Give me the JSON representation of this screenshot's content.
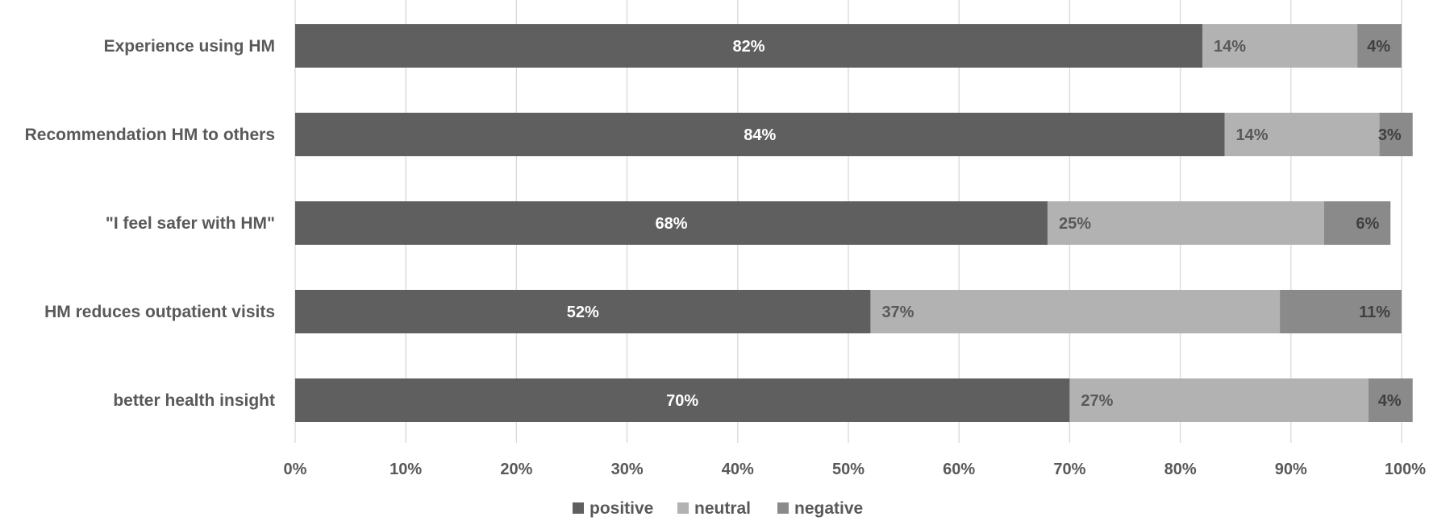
{
  "chart_data": {
    "type": "bar",
    "orientation": "horizontal",
    "stacked": true,
    "categories": [
      "Experience using HM",
      "Recommendation HM to others",
      "\"I feel safer with HM\"",
      "HM reduces outpatient visits",
      "better health insight"
    ],
    "series": [
      {
        "name": "positive",
        "color": "#5f5f5f",
        "label_color": "#ffffff",
        "values": [
          82,
          84,
          68,
          52,
          70
        ]
      },
      {
        "name": "neutral",
        "color": "#b2b2b2",
        "label_color": "#595959",
        "values": [
          14,
          14,
          25,
          37,
          27
        ]
      },
      {
        "name": "negative",
        "color": "#8a8a8a",
        "label_color": "#404040",
        "values": [
          4,
          3,
          6,
          11,
          4
        ]
      }
    ],
    "data_labels": [
      [
        "82%",
        "84%",
        "68%",
        "52%",
        "70%"
      ],
      [
        "14%",
        "14%",
        "25%",
        "37%",
        "27%"
      ],
      [
        "4%",
        "3%",
        "6%",
        "11%",
        "4%"
      ]
    ],
    "x_ticks": [
      "0%",
      "10%",
      "20%",
      "30%",
      "40%",
      "50%",
      "60%",
      "70%",
      "80%",
      "90%",
      "100%"
    ],
    "xlim": [
      0,
      100
    ],
    "grid": true,
    "legend": {
      "position": "bottom",
      "entries": [
        "positive",
        "neutral",
        "negative"
      ]
    },
    "title": "",
    "xlabel": "",
    "ylabel": ""
  }
}
